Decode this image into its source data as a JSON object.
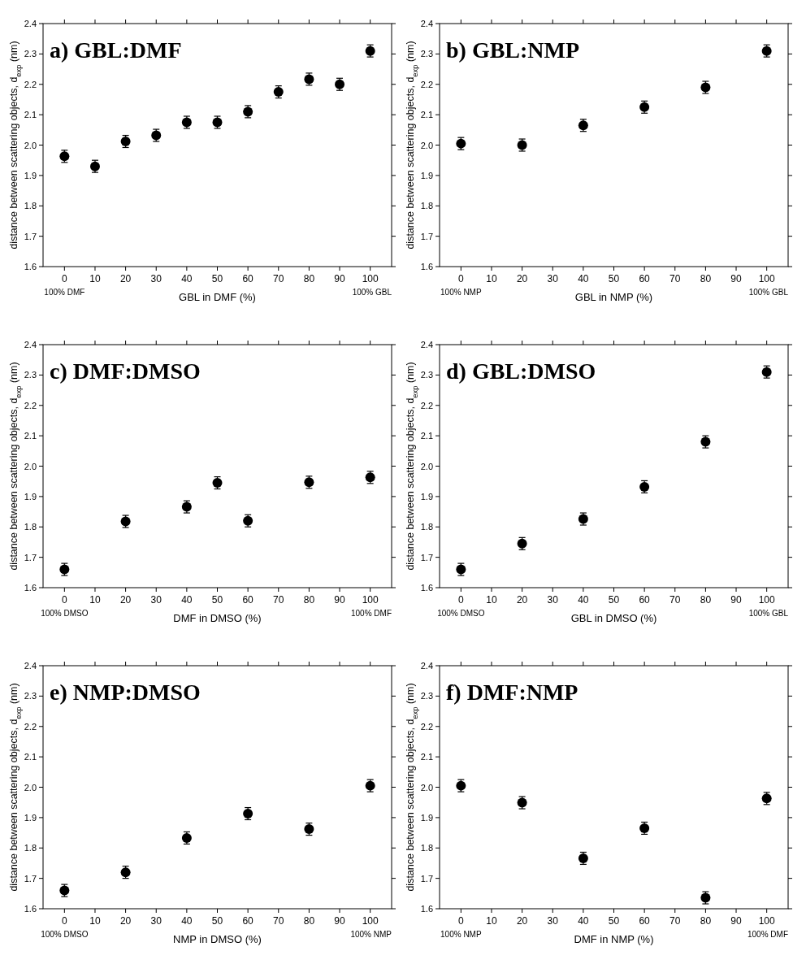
{
  "chart_data": [
    {
      "type": "scatter",
      "title": "a) GBL:DMF",
      "xlabel": "GBL in DMF (%)",
      "ylabel": "distance between scattering objects, d$_{exp}$ (nm)",
      "x": [
        0,
        10,
        20,
        30,
        40,
        50,
        60,
        70,
        80,
        90,
        100
      ],
      "values": [
        1.963,
        1.93,
        2.012,
        2.032,
        2.075,
        2.075,
        2.11,
        2.175,
        2.217,
        2.2,
        2.31
      ],
      "errors": [
        0.02,
        0.02,
        0.02,
        0.02,
        0.02,
        0.02,
        0.02,
        0.02,
        0.02,
        0.02,
        0.02
      ],
      "color": "#000000",
      "marker": "circle",
      "xlim": [
        -7,
        107
      ],
      "ylim": [
        1.6,
        2.4
      ],
      "xticks": [
        0,
        10,
        20,
        30,
        40,
        50,
        60,
        70,
        80,
        90,
        100
      ],
      "yticks": [
        {
          "value": 1.6,
          "label": "1.6"
        },
        {
          "value": 1.7,
          "label": "1.7"
        },
        {
          "value": 1.8,
          "label": "1.8"
        },
        {
          "value": 1.9,
          "label": "1.9"
        },
        {
          "value": 2.0,
          "label": "2.0"
        },
        {
          "value": 2.1,
          "label": "2.1"
        },
        {
          "value": 2.2,
          "label": "2.2"
        },
        {
          "value": 2.3,
          "label": "2.3"
        },
        {
          "value": 2.4,
          "label": "2.4"
        }
      ],
      "annotations": [
        "100% DMF",
        "100% GBL"
      ]
    },
    {
      "type": "scatter",
      "title": "b) GBL:NMP",
      "xlabel": "GBL in NMP (%)",
      "ylabel": "distance between scattering objects, d$_{exp}$ (nm)",
      "x": [
        0,
        20,
        40,
        60,
        80,
        100
      ],
      "values": [
        2.005,
        2.0,
        2.065,
        2.125,
        2.19,
        2.31
      ],
      "errors": [
        0.02,
        0.02,
        0.02,
        0.02,
        0.02,
        0.02
      ],
      "color": "#000000",
      "marker": "circle",
      "xlim": [
        -7,
        107
      ],
      "ylim": [
        1.6,
        2.4
      ],
      "xticks": [
        0,
        10,
        20,
        30,
        40,
        50,
        60,
        70,
        80,
        90,
        100
      ],
      "yticks": [
        {
          "value": 1.6,
          "label": "1.6"
        },
        {
          "value": 1.7,
          "label": "1.7"
        },
        {
          "value": 1.8,
          "label": "1.8"
        },
        {
          "value": 1.9,
          "label": "1.9"
        },
        {
          "value": 2.0,
          "label": "2.0"
        },
        {
          "value": 2.1,
          "label": "2.1"
        },
        {
          "value": 2.2,
          "label": "2.2"
        },
        {
          "value": 2.3,
          "label": "2.3"
        },
        {
          "value": 2.4,
          "label": "2.4"
        }
      ],
      "annotations": [
        "100% NMP",
        "100% GBL"
      ]
    },
    {
      "type": "scatter",
      "title": "c) DMF:DMSO",
      "xlabel": "DMF in DMSO (%)",
      "ylabel": "distance between scattering objects, d$_{exp}$ (nm)",
      "x": [
        0,
        20,
        40,
        50,
        60,
        80,
        100
      ],
      "values": [
        1.66,
        1.818,
        1.866,
        1.945,
        1.82,
        1.947,
        1.963
      ],
      "errors": [
        0.02,
        0.02,
        0.02,
        0.02,
        0.02,
        0.02,
        0.02
      ],
      "color": "#000000",
      "marker": "circle",
      "xlim": [
        -7,
        107
      ],
      "ylim": [
        1.6,
        2.4
      ],
      "xticks": [
        0,
        10,
        20,
        30,
        40,
        50,
        60,
        70,
        80,
        90,
        100
      ],
      "yticks": [
        {
          "value": 1.6,
          "label": "1.6"
        },
        {
          "value": 1.7,
          "label": "1.7"
        },
        {
          "value": 1.8,
          "label": "1.8"
        },
        {
          "value": 1.9,
          "label": "1.9"
        },
        {
          "value": 2.0,
          "label": "2.0"
        },
        {
          "value": 2.1,
          "label": "2.1"
        },
        {
          "value": 2.2,
          "label": "2.2"
        },
        {
          "value": 2.3,
          "label": "2.3"
        },
        {
          "value": 2.4,
          "label": "2.4"
        }
      ],
      "annotations": [
        "100% DMSO",
        "100% DMF"
      ]
    },
    {
      "type": "scatter",
      "title": "d) GBL:DMSO",
      "xlabel": "GBL in DMSO (%)",
      "ylabel": "distance between scattering objects, d$_{exp}$ (nm)",
      "x": [
        0,
        20,
        40,
        60,
        80,
        100
      ],
      "values": [
        1.66,
        1.745,
        1.826,
        1.932,
        2.08,
        2.31
      ],
      "errors": [
        0.02,
        0.02,
        0.02,
        0.02,
        0.02,
        0.02
      ],
      "color": "#000000",
      "marker": "circle",
      "xlim": [
        -7,
        107
      ],
      "ylim": [
        1.6,
        2.4
      ],
      "xticks": [
        0,
        10,
        20,
        30,
        40,
        50,
        60,
        70,
        80,
        90,
        100
      ],
      "yticks": [
        {
          "value": 1.6,
          "label": "1.6"
        },
        {
          "value": 1.7,
          "label": "1.7"
        },
        {
          "value": 1.8,
          "label": "1.8"
        },
        {
          "value": 1.9,
          "label": "1.9"
        },
        {
          "value": 2.0,
          "label": "2.0"
        },
        {
          "value": 2.1,
          "label": "2.1"
        },
        {
          "value": 2.2,
          "label": "2.2"
        },
        {
          "value": 2.3,
          "label": "2.3"
        },
        {
          "value": 2.4,
          "label": "2.4"
        }
      ],
      "annotations": [
        "100% DMSO",
        "100% GBL"
      ]
    },
    {
      "type": "scatter",
      "title": "e) NMP:DMSO",
      "xlabel": "NMP in DMSO (%)",
      "ylabel": "distance between scattering objects, d$_{exp}$ (nm)",
      "x": [
        0,
        20,
        40,
        60,
        80,
        100
      ],
      "values": [
        1.66,
        1.72,
        1.833,
        1.913,
        1.862,
        2.005
      ],
      "errors": [
        0.02,
        0.02,
        0.02,
        0.02,
        0.02,
        0.02
      ],
      "color": "#000000",
      "marker": "circle",
      "xlim": [
        -7,
        107
      ],
      "ylim": [
        1.6,
        2.4
      ],
      "xticks": [
        0,
        10,
        20,
        30,
        40,
        50,
        60,
        70,
        80,
        90,
        100
      ],
      "yticks": [
        {
          "value": 1.6,
          "label": "1.6"
        },
        {
          "value": 1.7,
          "label": "1.7"
        },
        {
          "value": 1.8,
          "label": "1.8"
        },
        {
          "value": 1.9,
          "label": "1.9"
        },
        {
          "value": 2.0,
          "label": "2.0"
        },
        {
          "value": 2.1,
          "label": "2.1"
        },
        {
          "value": 2.2,
          "label": "2.2"
        },
        {
          "value": 2.3,
          "label": "2.3"
        },
        {
          "value": 2.4,
          "label": "2.4"
        }
      ],
      "annotations": [
        "100% DMSO",
        "100% NMP"
      ]
    },
    {
      "type": "scatter",
      "title": "f) DMF:NMP",
      "xlabel": "DMF in NMP (%)",
      "ylabel": "distance between scattering objects, d$_{exp}$ (nm)",
      "x": [
        0,
        20,
        40,
        60,
        80,
        100
      ],
      "values": [
        2.005,
        1.949,
        1.766,
        1.865,
        1.636,
        1.963
      ],
      "errors": [
        0.02,
        0.02,
        0.02,
        0.02,
        0.02,
        0.02
      ],
      "color": "#000000",
      "marker": "circle",
      "xlim": [
        -7,
        107
      ],
      "ylim": [
        1.6,
        2.4
      ],
      "xticks": [
        0,
        10,
        20,
        30,
        40,
        50,
        60,
        70,
        80,
        90,
        100
      ],
      "yticks": [
        {
          "value": 1.6,
          "label": "1.6"
        },
        {
          "value": 1.7,
          "label": "1.7"
        },
        {
          "value": 1.8,
          "label": "1.8"
        },
        {
          "value": 1.9,
          "label": "1.9"
        },
        {
          "value": 2.0,
          "label": "2.0"
        },
        {
          "value": 2.1,
          "label": "2.1"
        },
        {
          "value": 2.2,
          "label": "2.2"
        },
        {
          "value": 2.3,
          "label": "2.3"
        },
        {
          "value": 2.4,
          "label": "2.4"
        }
      ],
      "annotations": [
        "100% NMP",
        "100% DMF"
      ]
    }
  ]
}
